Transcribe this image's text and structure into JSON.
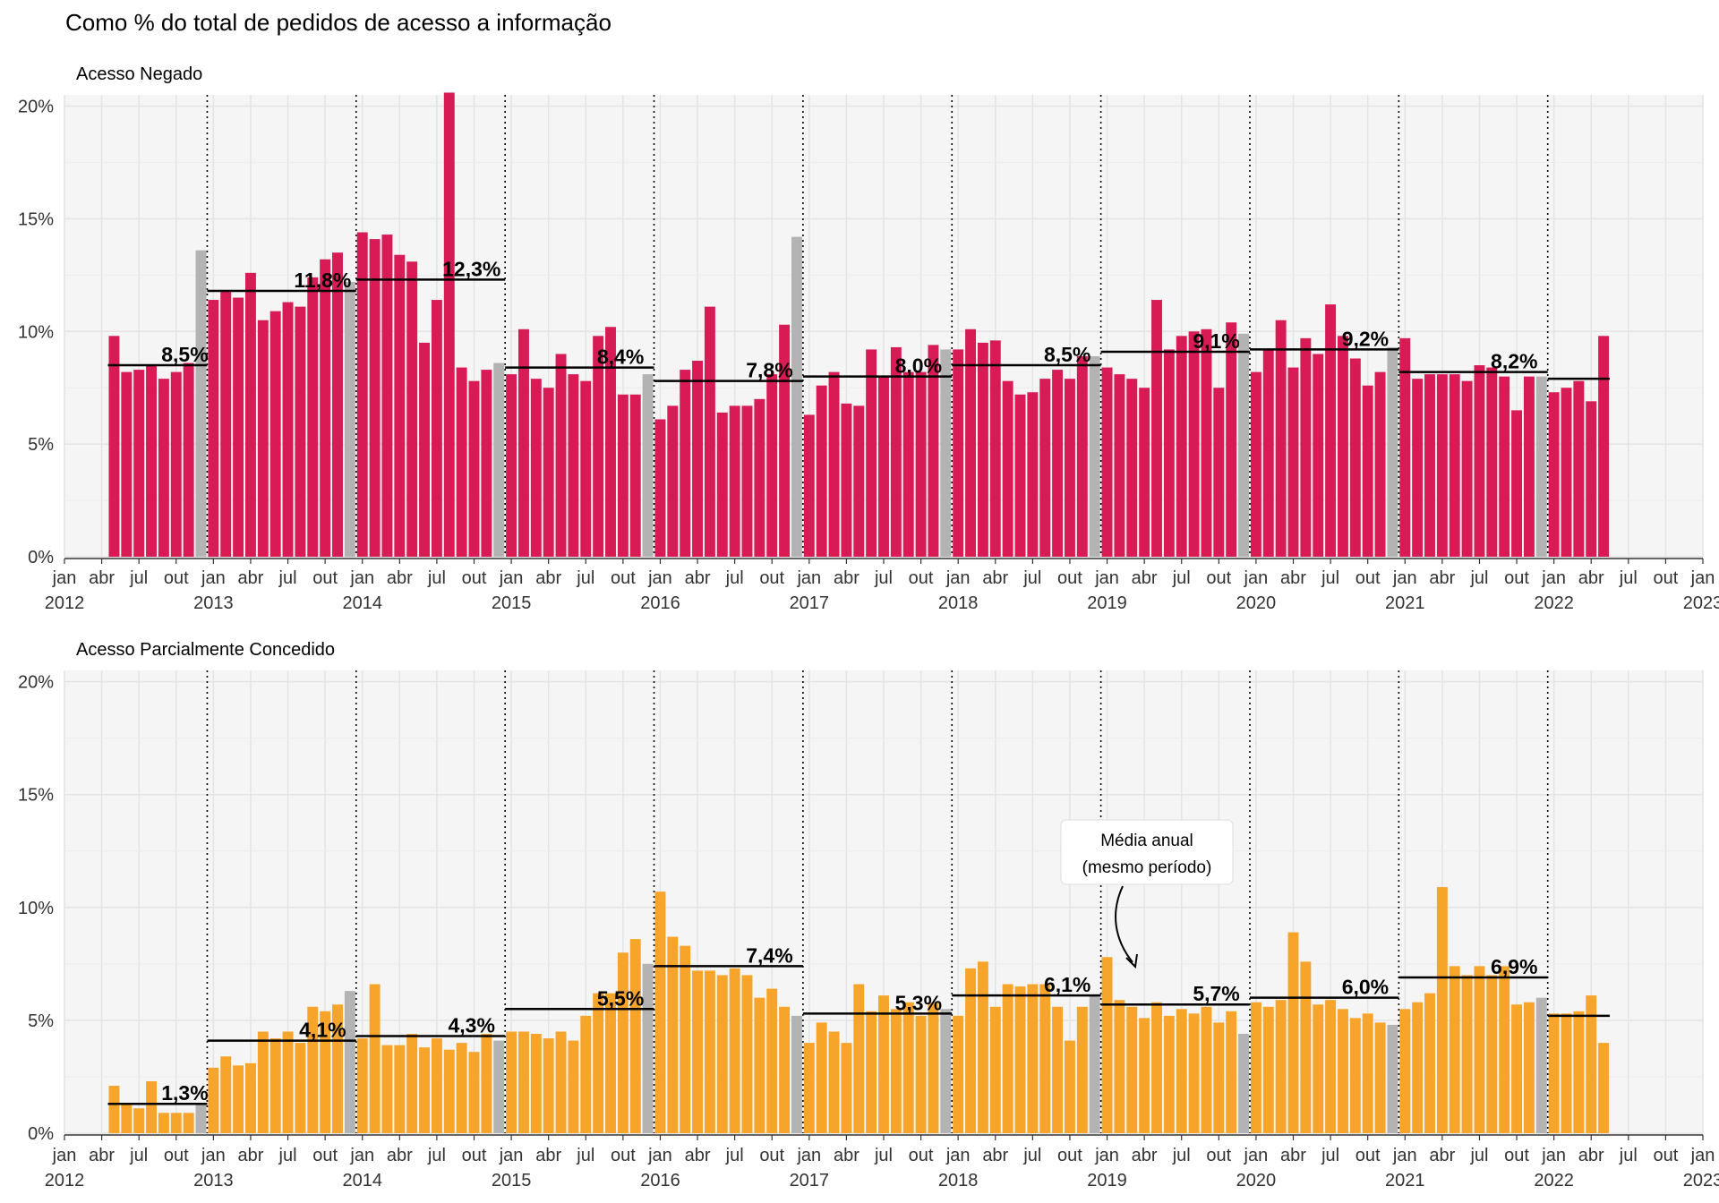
{
  "title": "Como % do total de pedidos de acesso a informação",
  "x_tick_labels": [
    [
      "jan",
      "2012"
    ],
    [
      "abr",
      ""
    ],
    [
      "jul",
      ""
    ],
    [
      "out",
      ""
    ],
    [
      "jan",
      "2013"
    ],
    [
      "abr",
      ""
    ],
    [
      "jul",
      ""
    ],
    [
      "out",
      ""
    ],
    [
      "jan",
      "2014"
    ],
    [
      "abr",
      ""
    ],
    [
      "jul",
      ""
    ],
    [
      "out",
      ""
    ],
    [
      "jan",
      "2015"
    ],
    [
      "abr",
      ""
    ],
    [
      "jul",
      ""
    ],
    [
      "out",
      ""
    ],
    [
      "jan",
      "2016"
    ],
    [
      "abr",
      ""
    ],
    [
      "jul",
      ""
    ],
    [
      "out",
      ""
    ],
    [
      "jan",
      "2017"
    ],
    [
      "abr",
      ""
    ],
    [
      "jul",
      ""
    ],
    [
      "out",
      ""
    ],
    [
      "jan",
      "2018"
    ],
    [
      "abr",
      ""
    ],
    [
      "jul",
      ""
    ],
    [
      "out",
      ""
    ],
    [
      "jan",
      "2019"
    ],
    [
      "abr",
      ""
    ],
    [
      "jul",
      ""
    ],
    [
      "out",
      ""
    ],
    [
      "jan",
      "2020"
    ],
    [
      "abr",
      ""
    ],
    [
      "jul",
      ""
    ],
    [
      "out",
      ""
    ],
    [
      "jan",
      "2021"
    ],
    [
      "abr",
      ""
    ],
    [
      "jul",
      ""
    ],
    [
      "out",
      ""
    ],
    [
      "jan",
      "2022"
    ],
    [
      "abr",
      ""
    ],
    [
      "jul",
      ""
    ],
    [
      "out",
      ""
    ],
    [
      "jan",
      "2023"
    ]
  ],
  "annotation": [
    "Média anual",
    "(mesmo período)"
  ],
  "colors": {
    "negado": "#d81b55",
    "parcial": "#f6a42a",
    "highlight_month": "#b3b3b3",
    "panel_bg": "#f5f5f5",
    "grid": "#e4e4e4",
    "avg_line": "#000000"
  },
  "chart_data": [
    {
      "type": "bar",
      "title": "Acesso Negado",
      "x_start": "2012-05",
      "x_end": "2022-05",
      "x_range": [
        "2012-01",
        "2023-01"
      ],
      "ylim": [
        0,
        20.5
      ],
      "y_ticks": [
        "0%",
        "5%",
        "10%",
        "15%",
        "20%"
      ],
      "grid": true,
      "gray_month": "dez",
      "year_dividers": [
        2013,
        2014,
        2015,
        2016,
        2017,
        2018,
        2019,
        2020,
        2021,
        2022
      ],
      "values": [
        9.8,
        8.2,
        8.3,
        8.5,
        7.9,
        8.2,
        8.6,
        13.6,
        11.4,
        11.8,
        11.5,
        12.6,
        10.5,
        10.9,
        11.3,
        11.1,
        12.4,
        13.2,
        13.5,
        12.2,
        14.4,
        14.1,
        14.3,
        13.4,
        13.1,
        9.5,
        11.4,
        20.6,
        8.4,
        7.8,
        8.3,
        8.6,
        8.1,
        10.1,
        7.9,
        7.5,
        9.0,
        8.1,
        7.8,
        9.8,
        10.2,
        7.2,
        7.2,
        8.1,
        6.1,
        6.7,
        8.3,
        8.7,
        11.1,
        6.4,
        6.7,
        6.7,
        7.0,
        8.1,
        10.3,
        14.2,
        6.3,
        7.6,
        8.2,
        6.8,
        6.7,
        9.2,
        8.0,
        9.3,
        8.2,
        8.2,
        9.4,
        9.2,
        9.2,
        10.1,
        9.5,
        9.6,
        7.8,
        7.2,
        7.3,
        7.9,
        8.3,
        7.9,
        8.9,
        8.9,
        8.4,
        8.1,
        7.9,
        7.5,
        11.4,
        9.2,
        9.8,
        10.0,
        10.1,
        7.5,
        10.4,
        9.9,
        8.2,
        9.2,
        10.5,
        8.4,
        9.7,
        9.0,
        11.2,
        9.8,
        8.8,
        7.6,
        8.2,
        9.3,
        9.7,
        7.9,
        8.1,
        8.1,
        8.1,
        7.8,
        8.5,
        8.4,
        8.0,
        6.5,
        8.0,
        8.0,
        7.3,
        7.5,
        7.8,
        6.9,
        9.8
      ],
      "annual_averages": [
        {
          "label": "8,5%",
          "value": 8.5,
          "from": "2012-05",
          "to": "2012-12"
        },
        {
          "label": "11,8%",
          "value": 11.8,
          "from": "2013-01",
          "to": "2013-12"
        },
        {
          "label": "12,3%",
          "value": 12.3,
          "from": "2014-01",
          "to": "2014-12"
        },
        {
          "label": "8,4%",
          "value": 8.4,
          "from": "2015-01",
          "to": "2015-12"
        },
        {
          "label": "7,8%",
          "value": 7.8,
          "from": "2016-01",
          "to": "2016-12"
        },
        {
          "label": "8,0%",
          "value": 8.0,
          "from": "2017-01",
          "to": "2017-12"
        },
        {
          "label": "8,5%",
          "value": 8.5,
          "from": "2018-01",
          "to": "2018-12"
        },
        {
          "label": "9,1%",
          "value": 9.1,
          "from": "2019-01",
          "to": "2019-12"
        },
        {
          "label": "9,2%",
          "value": 9.2,
          "from": "2020-01",
          "to": "2020-12"
        },
        {
          "label": "8,2%",
          "value": 8.2,
          "from": "2021-01",
          "to": "2021-12"
        },
        {
          "label": "",
          "value": 7.9,
          "from": "2022-01",
          "to": "2022-05"
        }
      ]
    },
    {
      "type": "bar",
      "title": "Acesso Parcialmente Concedido",
      "x_start": "2012-05",
      "x_end": "2022-05",
      "x_range": [
        "2012-01",
        "2023-01"
      ],
      "ylim": [
        0,
        20.5
      ],
      "y_ticks": [
        "0%",
        "5%",
        "10%",
        "15%",
        "20%"
      ],
      "grid": true,
      "gray_month": "dez",
      "year_dividers": [
        2013,
        2014,
        2015,
        2016,
        2017,
        2018,
        2019,
        2020,
        2021,
        2022
      ],
      "values": [
        2.1,
        1.3,
        1.1,
        2.3,
        0.9,
        0.9,
        0.9,
        1.3,
        2.9,
        3.4,
        3.0,
        3.1,
        4.5,
        4.2,
        4.5,
        4.0,
        5.6,
        5.4,
        5.7,
        6.3,
        4.2,
        6.6,
        3.9,
        3.9,
        4.4,
        3.8,
        4.2,
        3.7,
        4.0,
        3.6,
        4.4,
        4.1,
        4.5,
        4.5,
        4.4,
        4.2,
        4.5,
        4.1,
        5.2,
        6.2,
        6.2,
        8.0,
        8.6,
        7.5,
        10.7,
        8.7,
        8.3,
        7.2,
        7.2,
        7.0,
        7.3,
        7.0,
        6.0,
        6.4,
        5.6,
        5.2,
        4.0,
        4.9,
        4.5,
        4.0,
        6.6,
        5.4,
        6.1,
        5.5,
        5.8,
        5.2,
        5.8,
        5.5,
        5.2,
        7.3,
        7.6,
        5.6,
        6.6,
        6.5,
        6.6,
        6.6,
        5.6,
        4.1,
        5.6,
        6.1,
        7.8,
        5.9,
        5.6,
        5.1,
        5.8,
        5.2,
        5.5,
        5.3,
        5.6,
        4.9,
        5.4,
        4.4,
        5.8,
        5.6,
        5.9,
        8.9,
        7.6,
        5.7,
        5.9,
        5.5,
        5.1,
        5.3,
        4.9,
        4.8,
        5.5,
        5.8,
        6.2,
        10.9,
        7.4,
        7.0,
        7.4,
        7.0,
        7.4,
        5.7,
        5.8,
        6.0,
        5.3,
        5.3,
        5.4,
        6.1,
        4.0
      ],
      "annual_averages": [
        {
          "label": "1,3%",
          "value": 1.3,
          "from": "2012-05",
          "to": "2012-12"
        },
        {
          "label": "4,1%",
          "value": 4.1,
          "from": "2013-01",
          "to": "2013-12"
        },
        {
          "label": "4,3%",
          "value": 4.3,
          "from": "2014-01",
          "to": "2014-12"
        },
        {
          "label": "5,5%",
          "value": 5.5,
          "from": "2015-01",
          "to": "2015-12"
        },
        {
          "label": "7,4%",
          "value": 7.4,
          "from": "2016-01",
          "to": "2016-12"
        },
        {
          "label": "5,3%",
          "value": 5.3,
          "from": "2017-01",
          "to": "2017-12"
        },
        {
          "label": "6,1%",
          "value": 6.1,
          "from": "2018-01",
          "to": "2018-12"
        },
        {
          "label": "5,7%",
          "value": 5.7,
          "from": "2019-01",
          "to": "2019-12"
        },
        {
          "label": "6,0%",
          "value": 6.0,
          "from": "2020-01",
          "to": "2020-12"
        },
        {
          "label": "6,9%",
          "value": 6.9,
          "from": "2021-01",
          "to": "2021-12"
        },
        {
          "label": "",
          "value": 5.2,
          "from": "2022-01",
          "to": "2022-05"
        }
      ]
    }
  ]
}
